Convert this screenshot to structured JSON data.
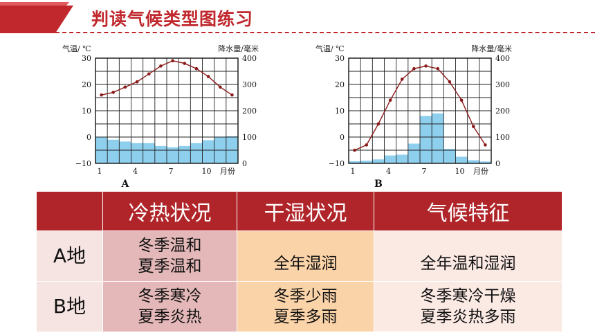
{
  "slide": {
    "title": "判读气候类型图练习",
    "accent_color": "#c0282d"
  },
  "charts": [
    {
      "id": "A",
      "label": "A",
      "left_axis_label": "气温/ ℃",
      "right_axis_label": "降水量/毫米",
      "x_axis_unit": "月份",
      "temp_ticks": [
        "30",
        "20",
        "10",
        "0",
        "−10"
      ],
      "precip_ticks": [
        "400",
        "300",
        "200",
        "100",
        "0"
      ],
      "month_ticks": [
        {
          "label": "1",
          "month": 1
        },
        {
          "label": "4",
          "month": 4
        },
        {
          "label": "7",
          "month": 7
        },
        {
          "label": "10",
          "month": 10
        }
      ]
    },
    {
      "id": "B",
      "label": "B",
      "left_axis_label": "气温/ ℃",
      "right_axis_label": "降水量/毫米",
      "x_axis_unit": "月份",
      "temp_ticks": [
        "30",
        "20",
        "10",
        "0",
        "−10"
      ],
      "precip_ticks": [
        "400",
        "300",
        "200",
        "100",
        "0"
      ],
      "month_ticks": [
        {
          "label": "1",
          "month": 1
        },
        {
          "label": "4",
          "month": 4
        },
        {
          "label": "7",
          "month": 7
        },
        {
          "label": "10",
          "month": 10
        }
      ]
    }
  ],
  "chart_data": [
    {
      "type": "bar+line",
      "title": "A",
      "x": [
        1,
        2,
        3,
        4,
        5,
        6,
        7,
        8,
        9,
        10,
        11,
        12
      ],
      "xlabel": "月份",
      "ylabel_left": "气温/ ℃",
      "ylabel_right": "降水量/毫米",
      "ylim_left": [
        -10,
        30
      ],
      "ylim_right": [
        0,
        400
      ],
      "temperature": [
        16,
        17,
        19,
        21,
        24,
        27,
        29,
        28,
        26,
        23,
        19,
        16
      ],
      "precipitation": [
        100,
        90,
        83,
        77,
        77,
        66,
        61,
        66,
        77,
        88,
        100,
        103
      ],
      "bar_color": "#8ecfee",
      "line_color": "#8b1a1a",
      "grid": true
    },
    {
      "type": "bar+line",
      "title": "B",
      "x": [
        1,
        2,
        3,
        4,
        5,
        6,
        7,
        8,
        9,
        10,
        11,
        12
      ],
      "xlabel": "月份",
      "ylabel_left": "气温/ ℃",
      "ylabel_right": "降水量/毫米",
      "ylim_left": [
        -10,
        30
      ],
      "ylim_right": [
        0,
        400
      ],
      "temperature": [
        -5,
        -3,
        5,
        14,
        22,
        26,
        27,
        26,
        21,
        14,
        4,
        -3
      ],
      "precipitation": [
        8,
        10,
        15,
        30,
        33,
        75,
        180,
        190,
        55,
        25,
        12,
        7
      ],
      "bar_color": "#8ecfee",
      "line_color": "#8b1a1a",
      "grid": true
    }
  ],
  "table": {
    "headers": [
      "",
      "冷热状况",
      "干湿状况",
      "气候特征"
    ],
    "rows": [
      {
        "label": "A地",
        "thermal": [
          "冬季温和",
          "夏季温和"
        ],
        "moisture": [
          "全年湿润"
        ],
        "feature": [
          "全年温和湿润"
        ]
      },
      {
        "label": "B地",
        "thermal": [
          "冬季寒冷",
          "夏季炎热"
        ],
        "moisture": [
          "冬季少雨",
          "夏季多雨"
        ],
        "feature": [
          "冬季寒冷干燥",
          "夏季炎热多雨"
        ]
      }
    ]
  }
}
